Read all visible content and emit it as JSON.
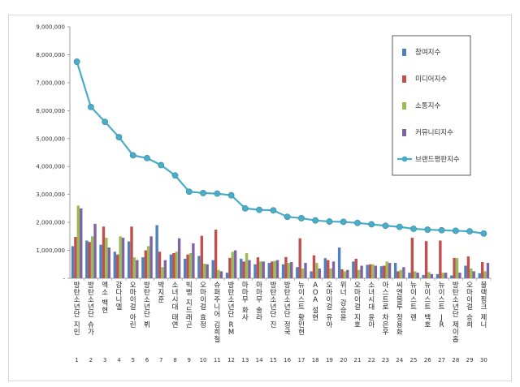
{
  "chart_data": {
    "type": "bar",
    "title": "",
    "xlabel": "",
    "ylabel": "",
    "ylim": [
      0,
      9000000
    ],
    "yticks": [
      0,
      1000000,
      2000000,
      3000000,
      4000000,
      5000000,
      6000000,
      7000000,
      8000000,
      9000000
    ],
    "ytick_labels": [
      "-",
      "1,000,000",
      "2,000,000",
      "3,000,000",
      "4,000,000",
      "5,000,000",
      "6,000,000",
      "7,000,000",
      "8,000,000",
      "9,000,000"
    ],
    "grid": false,
    "legend_placement": "top-right",
    "numbers": [
      "1",
      "2",
      "3",
      "4",
      "5",
      "6",
      "7",
      "8",
      "9",
      "10",
      "11",
      "12",
      "13",
      "14",
      "15",
      "16",
      "17",
      "18",
      "19",
      "20",
      "21",
      "22",
      "23",
      "24",
      "25",
      "26",
      "27",
      "28",
      "29",
      "30"
    ],
    "categories": [
      "방탄소년단 지민",
      "방탄소년단 슈가",
      "엑소 백현",
      "강다니엘",
      "오마이걸 아린",
      "방탄소년단 뷔",
      "박지훈",
      "소녀시대 태연",
      "빅뱅 지드래곤",
      "오마이걸 효정",
      "슈퍼주니어 김희철",
      "방탄소년단 RM",
      "마마무 화사",
      "마마무 솔라",
      "방탄소년단 진",
      "방탄소년단 정국",
      "뉴이스트 황민현",
      "AOA 설현",
      "오마이걸 유아",
      "위너 강승윤",
      "오마이걸 지호",
      "소녀시대 윤아",
      "아스트로 차은우",
      "씨엔블루 정용화",
      "뉴이스트 렌",
      "뉴이스트 백호",
      "뉴이스트 JR",
      "방탄소년단 제이홉",
      "오마이걸 승희",
      "블랙핑크 제니"
    ],
    "series": [
      {
        "name": "참여지수",
        "type": "bar",
        "color": "#4f81bd",
        "values": [
          1150000,
          1350000,
          1200000,
          950000,
          1320000,
          750000,
          1900000,
          850000,
          700000,
          800000,
          650000,
          200000,
          700000,
          500000,
          550000,
          500000,
          400000,
          250000,
          720000,
          1100000,
          600000,
          480000,
          430000,
          550000,
          200000,
          120000,
          150000,
          100000,
          450000,
          180000
        ]
      },
      {
        "name": "미디어지수",
        "type": "bar",
        "color": "#c0504d",
        "values": [
          1480000,
          1300000,
          1850000,
          850000,
          1850000,
          1000000,
          950000,
          900000,
          850000,
          1520000,
          1740000,
          730000,
          600000,
          750000,
          600000,
          760000,
          1430000,
          820000,
          650000,
          320000,
          700000,
          500000,
          450000,
          250000,
          1450000,
          1330000,
          1350000,
          730000,
          780000,
          580000
        ]
      },
      {
        "name": "소통지수",
        "type": "bar",
        "color": "#9bbb59",
        "values": [
          2600000,
          1500000,
          1450000,
          1500000,
          750000,
          1150000,
          400000,
          950000,
          900000,
          520000,
          300000,
          950000,
          900000,
          600000,
          620000,
          550000,
          350000,
          550000,
          350000,
          250000,
          300000,
          500000,
          600000,
          300000,
          250000,
          220000,
          200000,
          720000,
          350000,
          250000
        ]
      },
      {
        "name": "커뮤니티지수",
        "type": "bar",
        "color": "#8064a2",
        "values": [
          2500000,
          1950000,
          1100000,
          1450000,
          650000,
          1500000,
          650000,
          1430000,
          1250000,
          500000,
          250000,
          1000000,
          650000,
          600000,
          650000,
          580000,
          550000,
          350000,
          600000,
          300000,
          450000,
          450000,
          550000,
          400000,
          200000,
          150000,
          200000,
          200000,
          250000,
          550000
        ]
      },
      {
        "name": "브랜드평판지수",
        "type": "line",
        "color": "#4bacc6",
        "values": [
          7750000,
          6130000,
          5600000,
          5050000,
          4400000,
          4300000,
          4050000,
          3680000,
          3100000,
          3050000,
          3030000,
          2970000,
          2500000,
          2450000,
          2430000,
          2200000,
          2150000,
          2070000,
          2030000,
          2020000,
          1980000,
          1930000,
          1880000,
          1840000,
          1770000,
          1740000,
          1720000,
          1700000,
          1680000,
          1600000
        ]
      }
    ]
  }
}
